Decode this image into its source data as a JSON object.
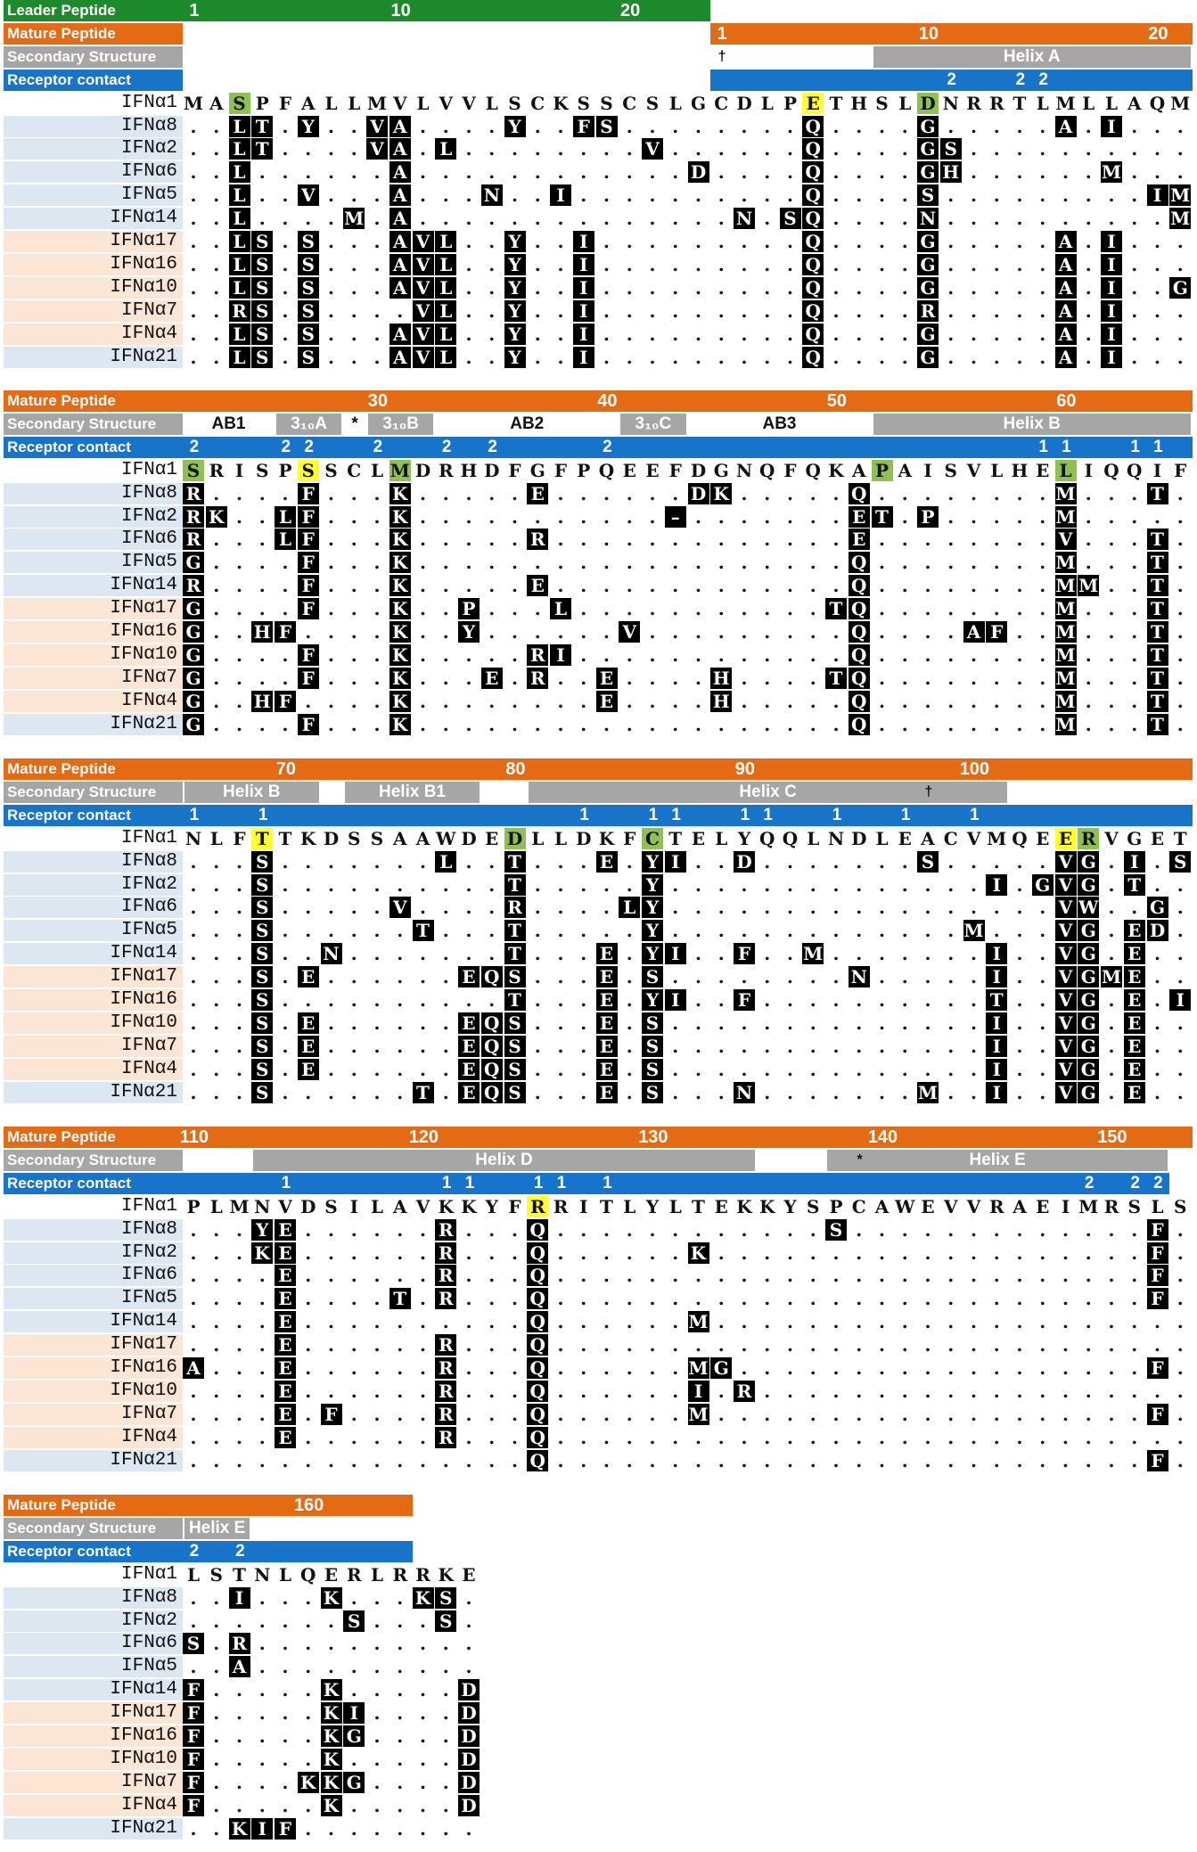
{
  "labels": {
    "leader": "Leader Peptide",
    "mature": "Mature Peptide",
    "secondary": "Secondary Structure",
    "receptor": "Receptor contact"
  },
  "colors": {
    "leader": "#1d8a2c",
    "mature": "#e46a13",
    "secondary": "#a6a6a6",
    "receptor": "#1874c9",
    "group1_bg": "#dde7f1",
    "group2_bg": "#fbe6d5",
    "substitution": "#000000",
    "highlight_yellow": "#ffff33",
    "highlight_green": "#8fc053"
  },
  "names": [
    "IFNα1",
    "IFNα8",
    "IFNα2",
    "IFNα6",
    "IFNα5",
    "IFNα14",
    "IFNα17",
    "IFNα16",
    "IFNα10",
    "IFNα7",
    "IFNα4",
    "IFNα21"
  ],
  "groups": [
    "b",
    "b",
    "b",
    "b",
    "b",
    "b",
    "p",
    "p",
    "p",
    "p",
    "p",
    "b"
  ],
  "blocks": [
    {
      "leader": {
        "ticks": [
          [
            1,
            "1"
          ],
          [
            10,
            "10"
          ],
          [
            20,
            "20"
          ]
        ],
        "end": 23
      },
      "mature_start": 24,
      "mature_ticks": [
        [
          24,
          "1"
        ],
        [
          33,
          "10"
        ],
        [
          43,
          "20"
        ]
      ],
      "secondary": [
        {
          "from": 24,
          "to": 30,
          "label": "",
          "style": "w"
        },
        {
          "from": 31,
          "to": 44,
          "label": "Helix A",
          "style": "g"
        }
      ],
      "marks": [
        [
          24,
          "†"
        ]
      ],
      "receptor_start": 24,
      "receptor": [
        [
          34,
          "2"
        ],
        [
          37,
          "2"
        ],
        [
          38,
          "2"
        ]
      ],
      "ref": "MASPFALLMVLVVLSCKSSCSLGCDLPETHSLDNRRTLMLLAQM",
      "rows": [
        ". . L T . Y . . V A . . . . Y . . F S . . . . . . . . Q . . . . G . . . . . A . I . . . . .",
        ". . L T . . . . V A . L . . . . . . . . V . . . . . . Q . . . . G S . . . . . . . . . . .",
        ". . L . . . . . . A . . . . . . . . . . . . D . . . . Q . . . . G H . . . . . . M . . . .",
        ". . L . . V . . . A . . . N . . I . . . . . . . . . . Q . . . . S . . . . . . . . . I M .",
        ". . L . . . . M . A . . . . . . . . . . . . . . N . S Q . . . . N . . . . . . . . . . M .",
        ". . L S . S . . . A V L . . Y . . I . . . . . . . . . Q . . . . G . . . . . A . I . . . .",
        ". . L S . S . . . A V L . . Y . . I . . . . . . . . . Q . . . . G . . . . . A . I . . . .",
        ". . L S . S . . . A V L . . Y . . I . . . . . . . . . Q . . . . G . . . . . A . I . . G .",
        ". . R S . S . . . . V L . . Y . . I . . . . . . . . . Q . . . . R . . . . . A . I . . . .",
        ". . L S . S . . . A V L . . Y . . I . . . . . . . . . Q . . . . G . . . . . A . I . . . .",
        ". . L S . S . . . A V L . . Y . . I . . . . . . . . . Q . . . . G . . . . . A . I . . . ."
      ],
      "hy": [
        28
      ],
      "hg": [
        3,
        33
      ]
    },
    {
      "mature_ticks": [
        [
          9,
          "30"
        ],
        [
          19,
          "40"
        ],
        [
          29,
          "50"
        ],
        [
          39,
          "60"
        ]
      ],
      "secondary": [
        {
          "from": 1,
          "to": 4,
          "label": "AB1",
          "style": "w"
        },
        {
          "from": 5,
          "to": 7,
          "label": "3₁₀A",
          "style": "g"
        },
        {
          "from": 8,
          "to": 8,
          "label": "*",
          "style": "w"
        },
        {
          "from": 9,
          "to": 11,
          "label": "3₁₀B",
          "style": "g"
        },
        {
          "from": 12,
          "to": 19,
          "label": "AB2",
          "style": "w"
        },
        {
          "from": 20,
          "to": 22,
          "label": "3₁₀C",
          "style": "g"
        },
        {
          "from": 23,
          "to": 30,
          "label": "AB3",
          "style": "w"
        },
        {
          "from": 31,
          "to": 44,
          "label": "Helix B",
          "style": "g"
        }
      ],
      "receptor": [
        [
          1,
          "2"
        ],
        [
          5,
          "2"
        ],
        [
          6,
          "2"
        ],
        [
          9,
          "2"
        ],
        [
          12,
          "2"
        ],
        [
          14,
          "2"
        ],
        [
          19,
          "2"
        ],
        [
          38,
          "1"
        ],
        [
          39,
          "1"
        ],
        [
          42,
          "1"
        ],
        [
          43,
          "1"
        ],
        [
          45,
          "1"
        ]
      ],
      "ref": "SRISPSSCLMDRHDFGFPQEEFDGNQFQKAPAISVLHELIQQIF",
      "rows": [
        "R . . . . F . . . K . . . . . E . . . . . . D K . . . . . Q . . . . . . . . M . . . T .",
        "R K . . L F . . . K . . . . . . . . . . . – . . . . . . . E T . P . . . . . M . . . . .",
        "R . . . L F . . . K . . . . . R . . . . . . . . . . . . . E . . . . . . . . V . . . T .",
        "G . . . . F . . . K . . . . . . . . . . . . . . . . . . . Q . . . . . . . . M . . . T .",
        "R . . . . F . . . K . . . . . E . . . . . . . . . . . . . Q . . . . . . . . M M . . T .",
        "G . . . . F . . . K . . P . . . L . . . . . . . . . . . T Q . . . . . . . . M . . . T .",
        "G . . H F . . . . K . . Y . . . . . . V . . . . . . . . . Q . . . . A F . . M . . . T .",
        "G . . . . F . . . K . . . . . R I . . . . . . . . . . . . Q . . . . . . . . M . . . T .",
        "G . . . . F . . . K . . . E . R . . E . . . . H . . . . T Q . . . . . . . . M . . . T .",
        "G . . H F . . . . K . . . . . . . . E . . . . H . . . . . Q . . . . . . . . M . . . T .",
        "G . . . . F . . . K . . . . . . . . . . . . . . . . . . . Q . . . . . . . . M . . . T ."
      ],
      "hy": [
        6
      ],
      "hg": [
        1,
        10,
        31,
        39
      ]
    },
    {
      "mature_ticks": [
        [
          5,
          "70"
        ],
        [
          15,
          "80"
        ],
        [
          25,
          "90"
        ],
        [
          35,
          "100"
        ]
      ],
      "secondary": [
        {
          "from": 1,
          "to": 6,
          "label": "Helix B",
          "style": "g"
        },
        {
          "from": 7,
          "to": 7,
          "label": "",
          "style": "w"
        },
        {
          "from": 8,
          "to": 13,
          "label": "Helix B1",
          "style": "g"
        },
        {
          "from": 14,
          "to": 15,
          "label": "",
          "style": "w"
        },
        {
          "from": 16,
          "to": 36,
          "label": "Helix C",
          "style": "g"
        }
      ],
      "marks": [
        [
          33,
          "†"
        ]
      ],
      "receptor": [
        [
          1,
          "1"
        ],
        [
          4,
          "1"
        ],
        [
          18,
          "1"
        ],
        [
          21,
          "1"
        ],
        [
          22,
          "1"
        ],
        [
          25,
          "1"
        ],
        [
          26,
          "1"
        ],
        [
          29,
          "1"
        ],
        [
          32,
          "1"
        ],
        [
          35,
          "1"
        ]
      ],
      "ref": "NLFTTKDSSAAWDEDLLDKFCTELYQQLNDLEACVMQEERVGET",
      "rows": [
        ". . . S . . . . . . . L . . T . . . E . Y I . . D . . . . . . . S . . . . . V G . I . S",
        ". . . S . . . . . . . . . . T . . . . . Y . . . . . . . . . . . . . . I . G V G . T . .",
        ". . . S . . . . . V . . . . R . . . . L Y . . . . . . . . . . . . . . . . . V W . . G .",
        ". . . S . . . . . . T . . . T . . . . . Y . . . . . . . . . . . . . M . . . V G . E D .",
        ". . . S . . N . . . . . . . T . . . E . Y I . . F . . M . . . . . . . I . . V G . E . .",
        ". . . S . E . . . . . . E Q S . . . E . S . . . . . . . . N . . . . . I . . V G M E . .",
        ". . . S . . . . . . . . . . T . . . E . Y I . . F . . . . . . . . . . T . . V G . E . I",
        ". . . S . E . . . . . . E Q S . . . E . S . . . . . . . . . . . . . . I . . V G . E . .",
        ". . . S . E . . . . . . E Q S . . . E . S . . . . . . . . . . . . . . I . . V G . E . .",
        ". . . S . E . . . . . . E Q S . . . E . S . . . . . . . . . . . . . . I . . V G . E . .",
        ". . . S . . . . . . T . E Q S . . . E . S . . . N . . . . . . . M . . I . . V G . E . ."
      ],
      "hy": [
        4,
        39
      ],
      "hg": [
        15,
        21,
        40
      ]
    },
    {
      "mature_ticks": [
        [
          1,
          "110"
        ],
        [
          11,
          "120"
        ],
        [
          21,
          "130"
        ],
        [
          31,
          "140"
        ],
        [
          41,
          "150"
        ]
      ],
      "secondary": [
        {
          "from": 4,
          "to": 25,
          "label": "Helix D",
          "style": "g"
        },
        {
          "from": 26,
          "to": 28,
          "label": "",
          "style": "w"
        },
        {
          "from": 29,
          "to": 43,
          "label": "Helix E",
          "style": "g"
        }
      ],
      "marks": [
        [
          30,
          "*"
        ]
      ],
      "receptor_to": 43,
      "receptor": [
        [
          5,
          "1"
        ],
        [
          12,
          "1"
        ],
        [
          13,
          "1"
        ],
        [
          16,
          "1"
        ],
        [
          17,
          "1"
        ],
        [
          19,
          "1"
        ],
        [
          40,
          "2"
        ],
        [
          42,
          "2"
        ],
        [
          43,
          "2"
        ]
      ],
      "ref": "PLMNVDSILAVKKYFRRITLYLTEKKYSPCAWEVVRAEIMRSLS",
      "rows": [
        ". . . Y E . . . . . . R . . . Q . . . . . . . . . . . . S . . . . . . . . . . . . . F .",
        ". . . K E . . . . . . R . . . Q . . . . . . K . . . . . . . . . . . . . . . . . . . F .",
        ". . . . E . . . . . . R . . . Q . . . . . . . . . . . . . . . . . . . . . . . . . . F .",
        ". . . . E . . . . T . R . . . Q . . . . . . . . . . . . . . . . . . . . . . . . . . F .",
        ". . . . E . . . . . . . . . . Q . . . . . . M . . . . . . . . . . . . . . . . . . . . .",
        ". . . . E . . . . . . R . . . Q . . . . . . . . . . . . . . . . . . . . . . . . . . . .",
        "A . . . E . . . . . . R . . . Q . . . . . . M G . . . . . . . . . . . . . . . . . . F .",
        ". . . . E . . . . . . R . . . Q . . . . . . I . R . . . . . . . . . . . . . . . . . . .",
        ". . . . E . F . . . . R . . . Q . . . . . . M . . . . . . . . . . . . . . . . . . . F .",
        ". . . . E . . . . . . R . . . Q . . . . . . . . . . . . . . . . . . . . . . . . . . . .",
        ". . . . . . . . . . . . . . . Q . . . . . . . . . . . . . . . . . . . . . . . . . . F ."
      ],
      "hy": [
        16
      ],
      "hg": []
    },
    {
      "mature_ticks": [
        [
          6,
          "160"
        ]
      ],
      "mature_to": 10,
      "secondary": [
        {
          "from": 1,
          "to": 3,
          "label": "Helix E",
          "style": "g"
        }
      ],
      "receptor_to": 10,
      "receptor": [
        [
          1,
          "2"
        ],
        [
          3,
          "2"
        ]
      ],
      "ref": "LSTNLQERLRRKE",
      "rows": [
        ". . I . . . K . . . K S .",
        ". . . . . . . S . . . S .",
        "S . R . . . . . . . . . .",
        ". . A . . . . . . . . . .",
        "F . . . . . K . . . . . D",
        "F . . . . . K I . . . . D",
        "F . . . . . K G . . . . D",
        "F . . . . . K . . . . . D",
        "F . . . . K K G . . . . D",
        "F . . . . . K . . . . . D",
        ". . K I F . . . . . . . ."
      ],
      "hy": [],
      "hg": []
    }
  ]
}
